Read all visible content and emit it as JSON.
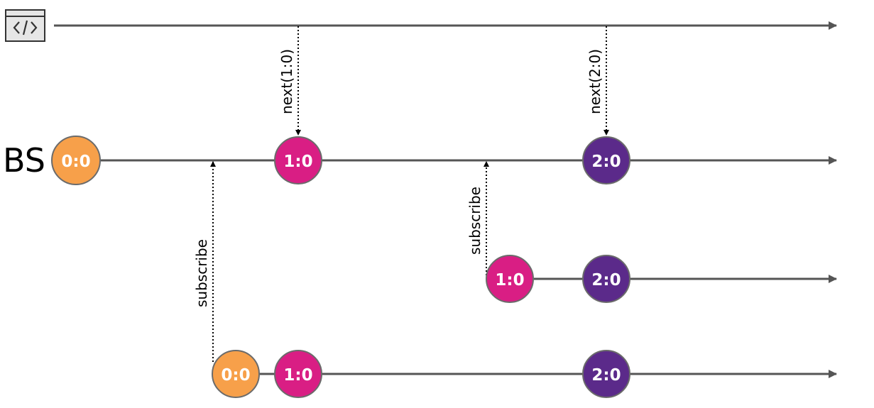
{
  "source": {
    "icon": "code-window-icon"
  },
  "subject_label": "BS",
  "events": {
    "next_1": "next(1:0)",
    "next_2": "next(2:0)",
    "subscribe_1": "subscribe",
    "subscribe_2": "subscribe"
  },
  "values": {
    "v00": "0:0",
    "v10": "1:0",
    "v20": "2:0"
  },
  "colors": {
    "line": "#555555",
    "v00": "#F7A04A",
    "v10": "#D91E84",
    "v20": "#5B2A8A",
    "circle_stroke": "#6b6b6b",
    "text": "#000000"
  }
}
